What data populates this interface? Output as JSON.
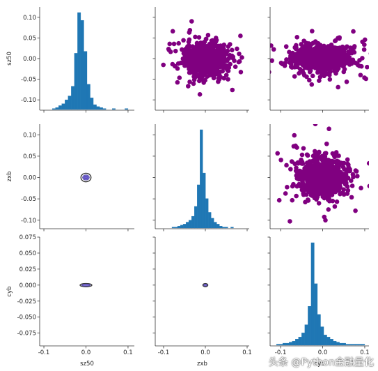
{
  "watermark": "头条 @Python金融量化",
  "colors": {
    "hist": "#1f77b4",
    "scatter": "#800080",
    "kde_outer": "#3a3a3a",
    "kde_inner": "#7b68ee"
  },
  "chart_data": {
    "type": "pairplot",
    "variables": [
      "sz50",
      "zxb",
      "cyb"
    ],
    "xlabels": [
      "sz50",
      "zxb",
      "cyb"
    ],
    "ylabels": [
      "sz50",
      "zxb",
      "cyb"
    ],
    "y_limits": [
      [
        -0.125,
        0.125
      ],
      [
        -0.12,
        0.125
      ],
      [
        -0.095,
        0.075
      ]
    ],
    "y_ticks": [
      [
        -0.1,
        -0.05,
        0.0,
        0.05,
        0.1
      ],
      [
        -0.1,
        -0.05,
        0.0,
        0.05,
        0.1
      ],
      [
        -0.075,
        -0.05,
        -0.025,
        0.0,
        0.025,
        0.05,
        0.075
      ]
    ],
    "y_tick_labels": [
      [
        "-0.10",
        "-0.05",
        "0.00",
        "0.05",
        "0.10"
      ],
      [
        "-0.10",
        "-0.05",
        "0.00",
        "0.05",
        "0.10"
      ],
      [
        "-0.075",
        "-0.050",
        "-0.025",
        "0.000",
        "0.025",
        "0.050",
        "0.075"
      ]
    ],
    "x_limits": [
      [
        -0.11,
        0.115
      ],
      [
        -0.12,
        0.105
      ],
      [
        -0.125,
        0.11
      ]
    ],
    "x_ticks": [
      [
        -0.1,
        0.0,
        0.1
      ],
      [
        -0.1,
        0.0,
        0.1
      ],
      [
        -0.1,
        0.0,
        0.1
      ]
    ],
    "x_tick_labels": [
      [
        "-0.1",
        "0.0",
        "0.1"
      ],
      [
        "-0.1",
        "0.0",
        "0.1"
      ],
      [
        "-0.1",
        "0.0",
        "0.1"
      ]
    ],
    "histograms": [
      {
        "variable": "sz50",
        "bin_start": -0.08,
        "bin_width": 0.0075,
        "counts": [
          1,
          2,
          4,
          6,
          10,
          14,
          24,
          58,
          100,
          92,
          60,
          26,
          12,
          5,
          3,
          2,
          1,
          0,
          0,
          1,
          0,
          0,
          0,
          1
        ]
      },
      {
        "variable": "zxb",
        "bin_start": -0.08,
        "bin_width": 0.0067,
        "counts": [
          1,
          1,
          2,
          3,
          4,
          6,
          8,
          12,
          22,
          44,
          100,
          56,
          30,
          16,
          10,
          6,
          4,
          2,
          1,
          1,
          0,
          1
        ]
      },
      {
        "variable": "cyb",
        "bin_start": -0.11,
        "bin_width": 0.0075,
        "counts": [
          1,
          1,
          2,
          2,
          3,
          4,
          6,
          8,
          12,
          20,
          38,
          100,
          60,
          30,
          18,
          10,
          8,
          6,
          4,
          3,
          2,
          2,
          1,
          1,
          1,
          1,
          1,
          1
        ]
      }
    ],
    "scatter_panels": [
      {
        "x": "zxb",
        "y": "sz50",
        "n_points": 900,
        "x_spread": 0.025,
        "y_spread": 0.018,
        "correlation": 0.0
      },
      {
        "x": "cyb",
        "y": "sz50",
        "n_points": 900,
        "x_spread": 0.03,
        "y_spread": 0.015,
        "correlation": 0.0
      },
      {
        "x": "cyb",
        "y": "zxb",
        "n_points": 900,
        "x_spread": 0.026,
        "y_spread": 0.022,
        "correlation": 0.0
      }
    ],
    "kde_panels": [
      {
        "x": "sz50",
        "y": "zxb",
        "center": [
          0.0,
          0.0
        ],
        "levels": [
          {
            "rx": 0.012,
            "ry": 0.01
          },
          {
            "rx": 0.008,
            "ry": 0.006
          },
          {
            "rx": 0.005,
            "ry": 0.003
          }
        ]
      },
      {
        "x": "sz50",
        "y": "cyb",
        "center": [
          0.0,
          0.0
        ],
        "levels": [
          {
            "rx": 0.014,
            "ry": 0.0025
          },
          {
            "rx": 0.01,
            "ry": 0.0017
          }
        ]
      },
      {
        "x": "zxb",
        "y": "cyb",
        "center": [
          0.0,
          0.0
        ],
        "levels": [
          {
            "rx": 0.006,
            "ry": 0.0025
          },
          {
            "rx": 0.004,
            "ry": 0.0016
          }
        ]
      }
    ]
  }
}
